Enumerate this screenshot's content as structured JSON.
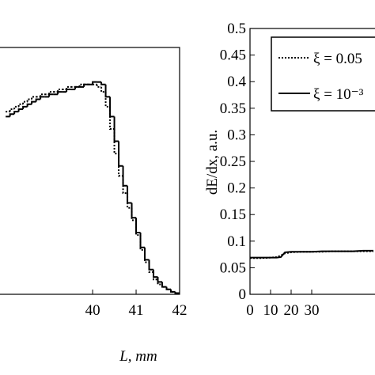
{
  "chart_data": [
    {
      "type": "histogram",
      "x_label": "L, mm",
      "bins": [
        38.0,
        38.1,
        38.2,
        38.3,
        38.4,
        38.5,
        38.6,
        38.7,
        38.8,
        38.9,
        39.0,
        39.1,
        39.2,
        39.3,
        39.4,
        39.5,
        39.6,
        39.7,
        39.8,
        39.9,
        40.0,
        40.1,
        40.2,
        40.3,
        40.4,
        40.5,
        40.6,
        40.7,
        40.8,
        40.9,
        41.0,
        41.1,
        41.2,
        41.3,
        41.4,
        41.5,
        41.6,
        41.7,
        41.8,
        41.9,
        42.0
      ],
      "series": [
        {
          "name": "ξ = 0.05",
          "color": "#000000",
          "dash": "dotted",
          "values": [
            0.74,
            0.75,
            0.76,
            0.77,
            0.78,
            0.79,
            0.8,
            0.8,
            0.81,
            0.81,
            0.82,
            0.82,
            0.83,
            0.83,
            0.84,
            0.84,
            0.84,
            0.85,
            0.85,
            0.85,
            0.85,
            0.84,
            0.82,
            0.76,
            0.67,
            0.57,
            0.48,
            0.41,
            0.35,
            0.3,
            0.24,
            0.18,
            0.13,
            0.09,
            0.06,
            0.04,
            0.03,
            0.02,
            0.01,
            0.005
          ]
        },
        {
          "name": "ξ = 10⁻³",
          "color": "#000000",
          "dash": "solid",
          "values": [
            0.72,
            0.73,
            0.74,
            0.75,
            0.76,
            0.77,
            0.78,
            0.79,
            0.8,
            0.8,
            0.81,
            0.81,
            0.82,
            0.82,
            0.83,
            0.83,
            0.84,
            0.84,
            0.85,
            0.85,
            0.86,
            0.86,
            0.85,
            0.8,
            0.72,
            0.62,
            0.52,
            0.44,
            0.37,
            0.31,
            0.25,
            0.19,
            0.14,
            0.1,
            0.07,
            0.05,
            0.03,
            0.02,
            0.01,
            0.005
          ]
        }
      ],
      "xlim": [
        37.87,
        42
      ],
      "xticks": [
        40,
        41,
        42
      ],
      "ylim": [
        0,
        1
      ]
    },
    {
      "type": "line",
      "y_label": "dE/dx, a.u.",
      "x": [
        0,
        5,
        10,
        13,
        15,
        17,
        20,
        25,
        30,
        35,
        40,
        45,
        50,
        55,
        60
      ],
      "series": [
        {
          "name": "ξ = 0.05",
          "color": "#000000",
          "dash": "dotted",
          "values": [
            0.068,
            0.068,
            0.069,
            0.07,
            0.073,
            0.077,
            0.079,
            0.08,
            0.08,
            0.08,
            0.081,
            0.081,
            0.081,
            0.081,
            0.081
          ]
        },
        {
          "name": "ξ = 10⁻³",
          "color": "#000000",
          "dash": "solid",
          "values": [
            0.069,
            0.069,
            0.069,
            0.069,
            0.07,
            0.079,
            0.08,
            0.08,
            0.08,
            0.081,
            0.081,
            0.081,
            0.081,
            0.082,
            0.082
          ]
        }
      ],
      "xlim": [
        0,
        60
      ],
      "xticks": [
        0,
        10,
        20,
        30
      ],
      "ylim": [
        0,
        0.5
      ],
      "yticks": [
        0,
        0.05,
        0.1,
        0.15,
        0.2,
        0.25,
        0.3,
        0.35,
        0.4,
        0.45,
        0.5
      ]
    }
  ]
}
